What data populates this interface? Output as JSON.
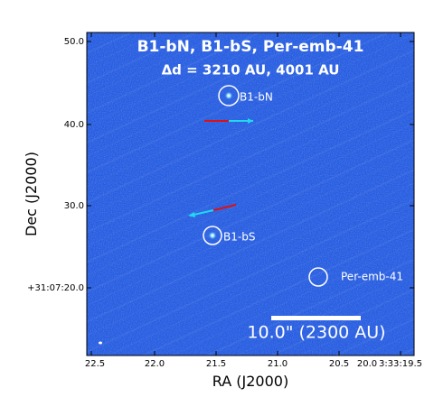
{
  "title_line1": "B1-bN, B1-bS, Per-emb-41",
  "title_line2": "Δd = 3210 AU, 4001 AU",
  "xlabel": "RA (J2000)",
  "ylabel": "Dec (J2000)",
  "x_ticks": [
    "22.5",
    "22.0",
    "21.5",
    "21.0",
    "20.5",
    "20.0",
    "3:33:19.5"
  ],
  "y_ticks": [
    "50.0",
    "40.0",
    "30.0",
    "+31:07:20.0"
  ],
  "sources": [
    {
      "name": "B1-bN",
      "label": "B1-bN"
    },
    {
      "name": "B1-bS",
      "label": "B1-bS"
    },
    {
      "name": "Per-emb-41",
      "label": "Per-emb-41"
    }
  ],
  "scale_bar_label": "10.0\" (2300 AU)",
  "colors": {
    "image_background": "#2a5ce0",
    "redshifted_outflow": "#e01010",
    "blueshifted_outflow": "#20d8f0",
    "source_marker": "#ffffff"
  }
}
